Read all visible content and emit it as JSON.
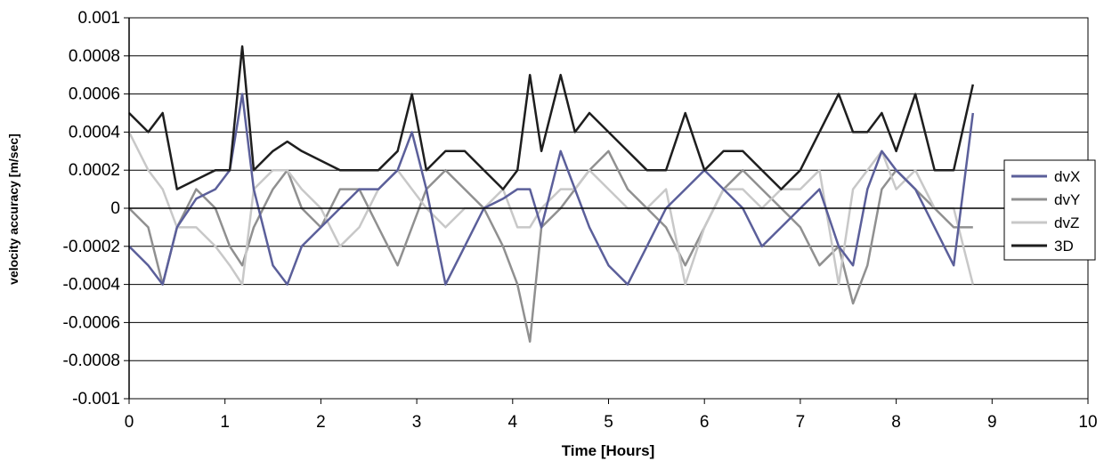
{
  "chart_data": {
    "type": "line",
    "title": "",
    "xlabel": "Time [Hours]",
    "ylabel": "velocity accuracy [m/sec]",
    "xlim": [
      0,
      10
    ],
    "ylim": [
      -0.001,
      0.001
    ],
    "x_ticks": [
      "0",
      "1",
      "2",
      "3",
      "4",
      "5",
      "6",
      "7",
      "8",
      "9",
      "10"
    ],
    "y_ticks": [
      "0.001",
      "0.0008",
      "0.0006",
      "0.0004",
      "0.0002",
      "0",
      "-0.0002",
      "-0.0004",
      "-0.0006",
      "-0.0008",
      "-0.001"
    ],
    "y_tick_values": [
      0.001,
      0.0008,
      0.0006,
      0.0004,
      0.0002,
      0,
      -0.0002,
      -0.0004,
      -0.0006,
      -0.0008,
      -0.001
    ],
    "grid": "horizontal",
    "legend_position": "right",
    "x": [
      0.0,
      0.2,
      0.35,
      0.5,
      0.7,
      0.9,
      1.05,
      1.18,
      1.3,
      1.5,
      1.65,
      1.8,
      2.0,
      2.2,
      2.4,
      2.6,
      2.8,
      2.95,
      3.1,
      3.3,
      3.5,
      3.7,
      3.9,
      4.05,
      4.18,
      4.3,
      4.5,
      4.65,
      4.8,
      5.0,
      5.2,
      5.4,
      5.6,
      5.8,
      6.0,
      6.2,
      6.4,
      6.6,
      6.8,
      7.0,
      7.2,
      7.4,
      7.55,
      7.7,
      7.85,
      8.0,
      8.2,
      8.4,
      8.6,
      8.8
    ],
    "series": [
      {
        "name": "dvX",
        "color": "#5b5f9a",
        "values": [
          -0.0002,
          -0.0003,
          -0.0004,
          -0.0001,
          5e-05,
          0.0001,
          0.0002,
          0.0006,
          0.0001,
          -0.0003,
          -0.0004,
          -0.0002,
          -0.0001,
          0.0,
          0.0001,
          0.0001,
          0.0002,
          0.0004,
          0.0001,
          -0.0004,
          -0.0002,
          0.0,
          5e-05,
          0.0001,
          0.0001,
          -0.0001,
          0.0003,
          0.0001,
          -0.0001,
          -0.0003,
          -0.0004,
          -0.0002,
          0.0,
          0.0001,
          0.0002,
          0.0001,
          0.0,
          -0.0002,
          -0.0001,
          0.0,
          0.0001,
          -0.0002,
          -0.0003,
          0.0001,
          0.0003,
          0.0002,
          0.0001,
          -0.0001,
          -0.0003,
          0.0005
        ]
      },
      {
        "name": "dvY",
        "color": "#909090",
        "values": [
          0.0,
          -0.0001,
          -0.0004,
          -0.0001,
          0.0001,
          0.0,
          -0.0002,
          -0.0003,
          -0.0001,
          0.0001,
          0.0002,
          0.0,
          -0.0001,
          0.0001,
          0.0001,
          -0.0001,
          -0.0003,
          -0.0001,
          0.0001,
          0.0002,
          0.0001,
          0.0,
          -0.0002,
          -0.0004,
          -0.0007,
          -0.0001,
          0.0,
          0.0001,
          0.0002,
          0.0003,
          0.0001,
          0.0,
          -0.0001,
          -0.0003,
          -0.0001,
          0.0001,
          0.0002,
          0.0001,
          0.0,
          -0.0001,
          -0.0003,
          -0.0002,
          -0.0005,
          -0.0003,
          0.0001,
          0.0002,
          0.0001,
          0.0,
          -0.0001,
          -0.0001
        ]
      },
      {
        "name": "dvZ",
        "color": "#c8c8c8",
        "values": [
          0.0004,
          0.0002,
          0.0001,
          -0.0001,
          -0.0001,
          -0.0002,
          -0.0003,
          -0.0004,
          0.0001,
          0.0002,
          0.0002,
          0.0001,
          0.0,
          -0.0002,
          -0.0001,
          0.0001,
          0.0002,
          0.0001,
          0.0,
          -0.0001,
          0.0,
          0.0,
          0.0001,
          -0.0001,
          -0.0001,
          0.0,
          0.0001,
          0.0001,
          0.0002,
          0.0001,
          0.0,
          0.0,
          0.0001,
          -0.0004,
          -0.0001,
          0.0001,
          0.0001,
          0.0,
          0.0001,
          0.0001,
          0.0002,
          -0.0004,
          0.0001,
          0.0002,
          0.0003,
          0.0001,
          0.0002,
          0.0,
          0.0,
          -0.0004
        ]
      },
      {
        "name": "3D",
        "color": "#1e1e1e",
        "values": [
          0.0005,
          0.0004,
          0.0005,
          0.0001,
          0.00015,
          0.0002,
          0.0002,
          0.00085,
          0.0002,
          0.0003,
          0.00035,
          0.0003,
          0.00025,
          0.0002,
          0.0002,
          0.0002,
          0.0003,
          0.0006,
          0.0002,
          0.0003,
          0.0003,
          0.0002,
          0.0001,
          0.0002,
          0.0007,
          0.0003,
          0.0007,
          0.0004,
          0.0005,
          0.0004,
          0.0003,
          0.0002,
          0.0002,
          0.0005,
          0.0002,
          0.0003,
          0.0003,
          0.0002,
          0.0001,
          0.0002,
          0.0004,
          0.0006,
          0.0004,
          0.0004,
          0.0005,
          0.0003,
          0.0006,
          0.0002,
          0.0002,
          0.00065
        ]
      }
    ]
  }
}
